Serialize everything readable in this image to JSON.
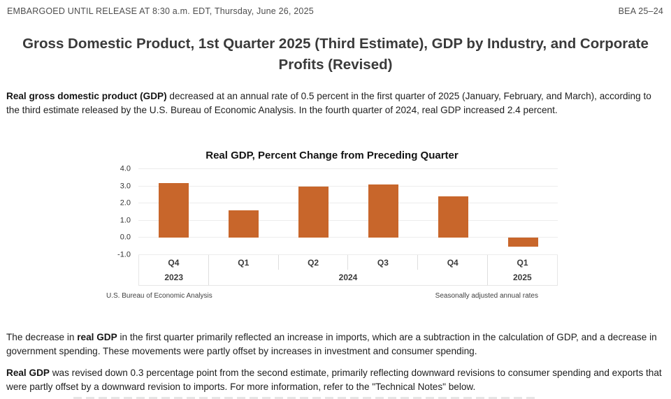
{
  "header": {
    "embargo": "EMBARGOED UNTIL RELEASE AT 8:30 a.m. EDT, Thursday, June 26, 2025",
    "release_number": "BEA 25–24"
  },
  "title": "Gross Domestic Product, 1st Quarter 2025 (Third Estimate), GDP by Industry, and Corporate Profits (Revised)",
  "paragraphs": [
    {
      "lead": "",
      "bold": "Real gross domestic product (GDP)",
      "rest": " decreased at an annual rate of 0.5 percent in the first quarter of 2025 (January, February, and March), according to the third estimate released by the U.S. Bureau of Economic Analysis. In the fourth quarter of 2024, real GDP increased 2.4 percent."
    },
    {
      "lead": "The decrease in ",
      "bold": "real GDP",
      "rest": " in the first quarter primarily reflected an increase in imports, which are a subtraction in the calculation of GDP, and a decrease in government spending. These movements were partly offset by increases in investment and consumer spending."
    },
    {
      "lead": "",
      "bold": "Real GDP",
      "rest": " was revised down 0.3 percentage point from the second estimate, primarily reflecting downward revisions to consumer spending and exports that were partly offset by a downward revision to imports. For more information, refer to the \"Technical Notes\" below."
    }
  ],
  "chart_data": {
    "type": "bar",
    "title": "Real GDP, Percent Change from Preceding Quarter",
    "categories": [
      "Q4",
      "Q1",
      "Q2",
      "Q3",
      "Q4",
      "Q1"
    ],
    "year_groups": [
      {
        "label": "2023",
        "span": 1
      },
      {
        "label": "2024",
        "span": 4
      },
      {
        "label": "2025",
        "span": 1
      }
    ],
    "values": [
      3.2,
      1.6,
      3.0,
      3.1,
      2.4,
      -0.5
    ],
    "ytick_labels": [
      "4.0",
      "3.0",
      "2.0",
      "1.0",
      "0.0",
      "-1.0"
    ],
    "ylim": [
      -1.0,
      4.0
    ],
    "grid": true,
    "legend": "none",
    "bar_color": "#C8662B",
    "footnote_left": "U.S. Bureau of Economic Analysis",
    "footnote_right": "Seasonally adjusted annual rates"
  }
}
